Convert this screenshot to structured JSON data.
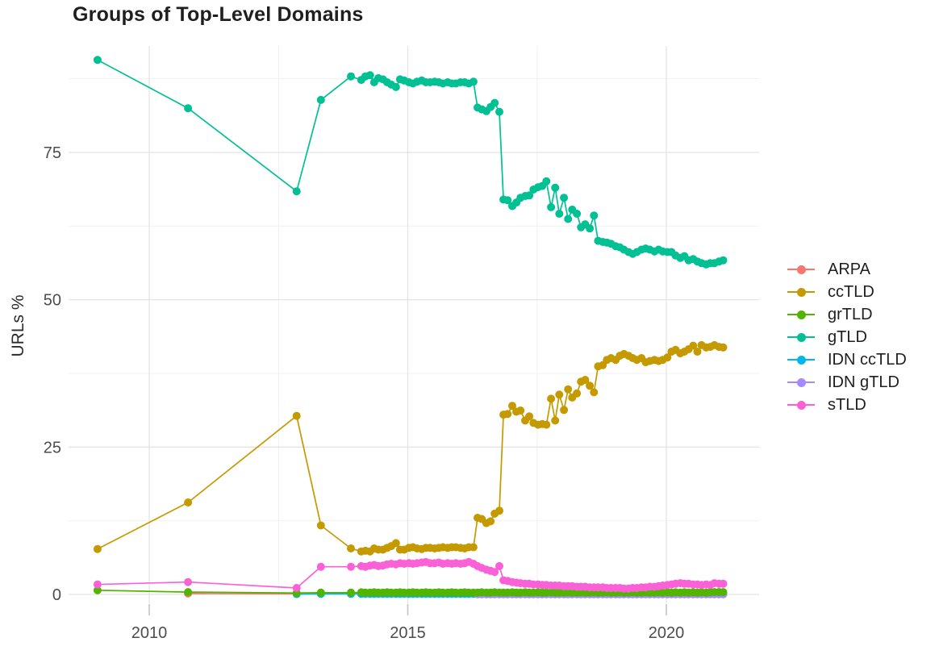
{
  "title": "Groups of Top-Level Domains",
  "chart_data": {
    "type": "line",
    "title": "Groups of Top-Level Domains",
    "xlabel": "",
    "ylabel": "URLs %",
    "xlim": [
      2008.44,
      2021.78
    ],
    "ylim": [
      -1.5,
      93
    ],
    "x_ticks": [
      2010,
      2015,
      2020
    ],
    "y_ticks": [
      0,
      25,
      50,
      75
    ],
    "x_minor": [
      2012.5,
      2017.5
    ],
    "y_minor": [
      12.5,
      37.5,
      62.5,
      87.5
    ],
    "grid": true,
    "legend_position": "right",
    "panel_bg": "#ffffff",
    "grid_major_color": "#e4e4e4",
    "grid_minor_color": "#f1f1f1",
    "tick_color": "#c9c9c9",
    "z_order": [
      0,
      4,
      5,
      1,
      3,
      2,
      6
    ],
    "series": [
      {
        "name": "ARPA",
        "color": "#F8766D",
        "x": [
          2010.75,
          2012.85
        ],
        "y": [
          0.15,
          0.1
        ]
      },
      {
        "name": "ccTLD",
        "color": "#C49A00",
        "x": [
          2009,
          2010.75,
          2012.85,
          2013.32,
          2013.9,
          2014.1,
          2014.18,
          2014.27,
          2014.35,
          2014.43,
          2014.52,
          2014.6,
          2014.68,
          2014.77,
          2014.85,
          2014.93,
          2015.02,
          2015.1,
          2015.18,
          2015.27,
          2015.35,
          2015.43,
          2015.52,
          2015.6,
          2015.68,
          2015.77,
          2015.85,
          2015.93,
          2016.02,
          2016.1,
          2016.18,
          2016.27,
          2016.35,
          2016.43,
          2016.52,
          2016.6,
          2016.68,
          2016.77,
          2016.85,
          2016.93,
          2017.02,
          2017.1,
          2017.18,
          2017.27,
          2017.35,
          2017.43,
          2017.52,
          2017.6,
          2017.68,
          2017.77,
          2017.85,
          2017.93,
          2018.02,
          2018.1,
          2018.18,
          2018.27,
          2018.35,
          2018.43,
          2018.52,
          2018.6,
          2018.68,
          2018.77,
          2018.85,
          2018.93,
          2019.02,
          2019.1,
          2019.18,
          2019.27,
          2019.35,
          2019.43,
          2019.52,
          2019.6,
          2019.68,
          2019.77,
          2019.85,
          2019.93,
          2020.02,
          2020.1,
          2020.18,
          2020.27,
          2020.35,
          2020.43,
          2020.52,
          2020.6,
          2020.68,
          2020.77,
          2020.85,
          2020.93,
          2021.02,
          2021.1
        ],
        "y": [
          7.7,
          15.6,
          30.3,
          11.7,
          7.8,
          7.3,
          7.4,
          7.3,
          7.8,
          7.6,
          7.6,
          7.9,
          8.2,
          8.7,
          7.6,
          7.6,
          7.9,
          8.0,
          7.8,
          7.7,
          7.9,
          7.9,
          7.8,
          7.9,
          8.0,
          7.9,
          8.0,
          8.0,
          7.9,
          7.8,
          8.0,
          8.0,
          13.0,
          12.8,
          12.1,
          12.4,
          13.7,
          14.2,
          30.5,
          30.6,
          32.0,
          31.0,
          31.2,
          29.5,
          30.2,
          29.1,
          28.8,
          28.9,
          28.8,
          33.2,
          29.5,
          33.9,
          31.3,
          34.8,
          33.4,
          34.1,
          36.1,
          36.4,
          35.4,
          34.3,
          38.7,
          38.9,
          39.8,
          40.1,
          39.8,
          40.5,
          40.8,
          40.5,
          40.1,
          39.8,
          40.1,
          39.4,
          39.6,
          39.8,
          39.6,
          39.8,
          40.2,
          41.2,
          41.5,
          40.9,
          41.2,
          41.6,
          42.2,
          41.2,
          42.3,
          41.9,
          42.0,
          42.3,
          42.0,
          41.9
        ]
      },
      {
        "name": "grTLD",
        "color": "#53B400",
        "x": [
          2009,
          2010.75,
          2012.85,
          2013.32,
          2013.9,
          2014.1,
          2014.18,
          2014.27,
          2014.35,
          2014.43,
          2014.52,
          2014.6,
          2014.68,
          2014.77,
          2014.85,
          2014.93,
          2015.02,
          2015.1,
          2015.18,
          2015.27,
          2015.35,
          2015.43,
          2015.52,
          2015.6,
          2015.68,
          2015.77,
          2015.85,
          2015.93,
          2016.02,
          2016.1,
          2016.18,
          2016.27,
          2016.35,
          2016.43,
          2016.52,
          2016.6,
          2016.68,
          2016.77,
          2016.85,
          2016.93,
          2017.02,
          2017.1,
          2017.18,
          2017.27,
          2017.35,
          2017.43,
          2017.52,
          2017.6,
          2017.68,
          2017.77,
          2017.85,
          2017.93,
          2018.02,
          2018.1,
          2018.18,
          2018.27,
          2018.35,
          2018.43,
          2018.52,
          2018.6,
          2018.68,
          2018.77,
          2018.85,
          2018.93,
          2019.02,
          2019.1,
          2019.18,
          2019.27,
          2019.35,
          2019.43,
          2019.52,
          2019.6,
          2019.68,
          2019.77,
          2019.85,
          2019.93,
          2020.02,
          2020.1,
          2020.18,
          2020.27,
          2020.35,
          2020.43,
          2020.52,
          2020.6,
          2020.68,
          2020.77,
          2020.85,
          2020.93,
          2021.02,
          2021.1
        ],
        "y": [
          0.7,
          0.4,
          0.25,
          0.3,
          0.3,
          0.35,
          0.3,
          0.3,
          0.35,
          0.3,
          0.3,
          0.35,
          0.3,
          0.3,
          0.35,
          0.3,
          0.3,
          0.35,
          0.3,
          0.3,
          0.35,
          0.3,
          0.3,
          0.35,
          0.3,
          0.3,
          0.35,
          0.3,
          0.3,
          0.35,
          0.3,
          0.3,
          0.3,
          0.35,
          0.3,
          0.3,
          0.35,
          0.3,
          0.3,
          0.3,
          0.35,
          0.3,
          0.3,
          0.35,
          0.3,
          0.3,
          0.35,
          0.3,
          0.3,
          0.35,
          0.3,
          0.3,
          0.3,
          0.35,
          0.3,
          0.3,
          0.35,
          0.3,
          0.3,
          0.35,
          0.3,
          0.3,
          0.35,
          0.3,
          0.3,
          0.35,
          0.3,
          0.3,
          0.35,
          0.3,
          0.3,
          0.35,
          0.3,
          0.3,
          0.35,
          0.3,
          0.35,
          0.3,
          0.35,
          0.3,
          0.35,
          0.3,
          0.35,
          0.3,
          0.35,
          0.3,
          0.35,
          0.4,
          0.4,
          0.4
        ]
      },
      {
        "name": "gTLD",
        "color": "#00C094",
        "x": [
          2009,
          2010.75,
          2012.85,
          2013.32,
          2013.9,
          2014.1,
          2014.18,
          2014.27,
          2014.35,
          2014.43,
          2014.52,
          2014.6,
          2014.68,
          2014.77,
          2014.85,
          2014.93,
          2015.02,
          2015.1,
          2015.18,
          2015.27,
          2015.35,
          2015.43,
          2015.52,
          2015.6,
          2015.68,
          2015.77,
          2015.85,
          2015.93,
          2016.02,
          2016.1,
          2016.18,
          2016.27,
          2016.35,
          2016.43,
          2016.52,
          2016.6,
          2016.68,
          2016.77,
          2016.85,
          2016.93,
          2017.02,
          2017.1,
          2017.18,
          2017.27,
          2017.35,
          2017.43,
          2017.52,
          2017.6,
          2017.68,
          2017.77,
          2017.85,
          2017.93,
          2018.02,
          2018.1,
          2018.18,
          2018.27,
          2018.35,
          2018.43,
          2018.52,
          2018.6,
          2018.68,
          2018.77,
          2018.85,
          2018.93,
          2019.02,
          2019.1,
          2019.18,
          2019.27,
          2019.35,
          2019.43,
          2019.52,
          2019.6,
          2019.68,
          2019.77,
          2019.85,
          2019.93,
          2020.02,
          2020.1,
          2020.18,
          2020.27,
          2020.35,
          2020.43,
          2020.52,
          2020.6,
          2020.68,
          2020.77,
          2020.85,
          2020.93,
          2021.02,
          2021.1
        ],
        "y": [
          90.7,
          82.5,
          68.4,
          83.9,
          87.9,
          87.3,
          87.9,
          88.1,
          86.9,
          87.6,
          87.4,
          86.9,
          86.5,
          86.1,
          87.4,
          87.2,
          86.9,
          86.7,
          87.0,
          87.2,
          86.9,
          86.9,
          87.0,
          86.9,
          86.7,
          86.9,
          86.7,
          86.7,
          86.9,
          86.9,
          86.7,
          87.0,
          82.6,
          82.3,
          82.0,
          82.7,
          83.4,
          81.9,
          67.0,
          66.9,
          65.9,
          66.5,
          67.3,
          67.6,
          67.7,
          68.7,
          69.1,
          69.3,
          70.1,
          65.7,
          69.0,
          64.6,
          67.3,
          63.7,
          65.3,
          64.6,
          62.3,
          62.8,
          62.1,
          64.3,
          60.0,
          59.8,
          59.7,
          59.5,
          59.1,
          58.9,
          58.5,
          58.1,
          57.8,
          58.1,
          58.5,
          58.7,
          58.5,
          58.2,
          58.5,
          58.2,
          58.1,
          58.1,
          57.5,
          57.1,
          57.4,
          56.7,
          56.9,
          56.5,
          56.2,
          56.0,
          56.2,
          56.2,
          56.5,
          56.7
        ]
      },
      {
        "name": "IDN ccTLD",
        "color": "#00B6EB",
        "x": [
          2012.85,
          2013.32,
          2013.9,
          2014.1,
          2014.18,
          2014.27,
          2014.35,
          2014.43,
          2014.52,
          2014.6,
          2014.68,
          2014.77,
          2014.85,
          2014.93,
          2015.02,
          2015.1,
          2015.18,
          2015.27,
          2015.35,
          2015.43,
          2015.52,
          2015.6,
          2015.68,
          2015.77,
          2015.85,
          2015.93,
          2016.02,
          2016.1,
          2016.18,
          2016.27,
          2016.35,
          2016.43,
          2016.52,
          2016.6,
          2016.68,
          2016.77,
          2016.85,
          2016.93,
          2017.02,
          2017.1,
          2017.18,
          2017.27,
          2017.35,
          2017.43,
          2017.52,
          2017.6,
          2017.68,
          2017.77,
          2017.85,
          2017.93,
          2018.02,
          2018.1,
          2018.18,
          2018.27,
          2018.35,
          2018.43,
          2018.52,
          2018.6,
          2018.68,
          2018.77,
          2018.85,
          2018.93,
          2019.02,
          2019.1,
          2019.18,
          2019.27,
          2019.35,
          2019.43,
          2019.52,
          2019.6,
          2019.68,
          2019.77,
          2019.85,
          2019.93,
          2020.02,
          2020.1,
          2020.18,
          2020.27,
          2020.35,
          2020.43,
          2020.52,
          2020.6,
          2020.68,
          2020.77,
          2020.85,
          2020.93,
          2021.02,
          2021.1
        ],
        "y": [
          0.05,
          0.08,
          0.08,
          0.08,
          0.08,
          0.08,
          0.08,
          0.08,
          0.08,
          0.08,
          0.08,
          0.08,
          0.08,
          0.08,
          0.08,
          0.08,
          0.08,
          0.08,
          0.08,
          0.08,
          0.08,
          0.08,
          0.08,
          0.08,
          0.08,
          0.08,
          0.08,
          0.08,
          0.08,
          0.08,
          0.08,
          0.08,
          0.08,
          0.08,
          0.08,
          0.08,
          0.08,
          0.08,
          0.08,
          0.08,
          0.08,
          0.08,
          0.08,
          0.08,
          0.08,
          0.08,
          0.08,
          0.08,
          0.08,
          0.08,
          0.08,
          0.08,
          0.08,
          0.08,
          0.08,
          0.08,
          0.08,
          0.08,
          0.08,
          0.08,
          0.08,
          0.08,
          0.08,
          0.08,
          0.08,
          0.08,
          0.08,
          0.08,
          0.08,
          0.08,
          0.08,
          0.08,
          0.08,
          0.08,
          0.08,
          0.08,
          0.08,
          0.08,
          0.08,
          0.08,
          0.08,
          0.08,
          0.08,
          0.08,
          0.08,
          0.08,
          0.08,
          0.08
        ]
      },
      {
        "name": "IDN gTLD",
        "color": "#A58AFF",
        "x": [
          2016.35,
          2016.43,
          2016.52,
          2016.6,
          2016.68,
          2016.77,
          2016.85,
          2016.93,
          2017.02,
          2017.1,
          2017.18,
          2017.27,
          2017.35,
          2017.43,
          2017.52,
          2017.6,
          2017.68,
          2017.77,
          2017.85,
          2017.93,
          2018.02,
          2018.1,
          2018.18,
          2018.27,
          2018.35,
          2018.43,
          2018.52,
          2018.6,
          2018.68,
          2018.77,
          2018.85,
          2018.93,
          2019.02,
          2019.1,
          2019.18,
          2019.27,
          2019.35,
          2019.43,
          2019.52,
          2019.6,
          2019.68,
          2019.77,
          2019.85,
          2019.93,
          2020.02,
          2020.1,
          2020.18,
          2020.27,
          2020.35,
          2020.43,
          2020.52,
          2020.6,
          2020.68,
          2020.77,
          2020.85,
          2020.93,
          2021.02,
          2021.1
        ],
        "y": [
          0.03,
          0.03,
          0.03,
          0.03,
          0.03,
          0.03,
          0.03,
          0.03,
          0.03,
          0.03,
          0.03,
          0.03,
          0.03,
          0.03,
          0.03,
          0.03,
          0.03,
          0.03,
          0.03,
          0.03,
          0.03,
          0.03,
          0.03,
          0.03,
          0.03,
          0.03,
          0.03,
          0.03,
          0.03,
          0.03,
          0.03,
          0.03,
          0.03,
          0.03,
          0.03,
          0.03,
          0.03,
          0.03,
          0.03,
          0.03,
          0.03,
          0.03,
          0.03,
          0.03,
          0.03,
          0.03,
          0.03,
          0.03,
          0.03,
          0.03,
          0.03,
          0.03,
          0.03,
          0.03,
          0.03,
          0.03,
          0.03,
          0.03
        ]
      },
      {
        "name": "sTLD",
        "color": "#FB61D7",
        "x": [
          2009,
          2010.75,
          2012.85,
          2013.32,
          2013.9,
          2014.1,
          2014.18,
          2014.27,
          2014.35,
          2014.43,
          2014.52,
          2014.6,
          2014.68,
          2014.77,
          2014.85,
          2014.93,
          2015.02,
          2015.1,
          2015.18,
          2015.27,
          2015.35,
          2015.43,
          2015.52,
          2015.6,
          2015.68,
          2015.77,
          2015.85,
          2015.93,
          2016.02,
          2016.1,
          2016.18,
          2016.27,
          2016.35,
          2016.43,
          2016.52,
          2016.6,
          2016.68,
          2016.77,
          2016.85,
          2016.93,
          2017.02,
          2017.1,
          2017.18,
          2017.27,
          2017.35,
          2017.43,
          2017.52,
          2017.6,
          2017.68,
          2017.77,
          2017.85,
          2017.93,
          2018.02,
          2018.1,
          2018.18,
          2018.27,
          2018.35,
          2018.43,
          2018.52,
          2018.6,
          2018.68,
          2018.77,
          2018.85,
          2018.93,
          2019.02,
          2019.1,
          2019.18,
          2019.27,
          2019.35,
          2019.43,
          2019.52,
          2019.6,
          2019.68,
          2019.77,
          2019.85,
          2019.93,
          2020.02,
          2020.1,
          2020.18,
          2020.27,
          2020.35,
          2020.43,
          2020.52,
          2020.6,
          2020.68,
          2020.77,
          2020.85,
          2020.93,
          2021.02,
          2021.1
        ],
        "y": [
          1.7,
          2.1,
          1.1,
          4.7,
          4.7,
          4.8,
          4.7,
          4.9,
          5.0,
          4.8,
          4.9,
          5.1,
          5.2,
          5.1,
          5.3,
          5.2,
          5.3,
          5.2,
          5.3,
          5.4,
          5.5,
          5.3,
          5.3,
          5.4,
          5.2,
          5.3,
          5.2,
          5.3,
          5.2,
          5.3,
          5.5,
          5.2,
          4.8,
          4.5,
          4.2,
          4.0,
          3.8,
          4.8,
          2.4,
          2.3,
          2.1,
          2.0,
          1.9,
          1.8,
          1.8,
          1.7,
          1.7,
          1.6,
          1.6,
          1.5,
          1.5,
          1.5,
          1.4,
          1.4,
          1.4,
          1.3,
          1.3,
          1.3,
          1.2,
          1.2,
          1.2,
          1.2,
          1.1,
          1.1,
          1.1,
          1.1,
          1.0,
          1.0,
          1.1,
          1.1,
          1.2,
          1.2,
          1.3,
          1.3,
          1.4,
          1.5,
          1.6,
          1.7,
          1.8,
          1.9,
          1.8,
          1.8,
          1.7,
          1.7,
          1.6,
          1.7,
          1.6,
          1.9,
          1.8,
          1.8
        ]
      }
    ]
  }
}
